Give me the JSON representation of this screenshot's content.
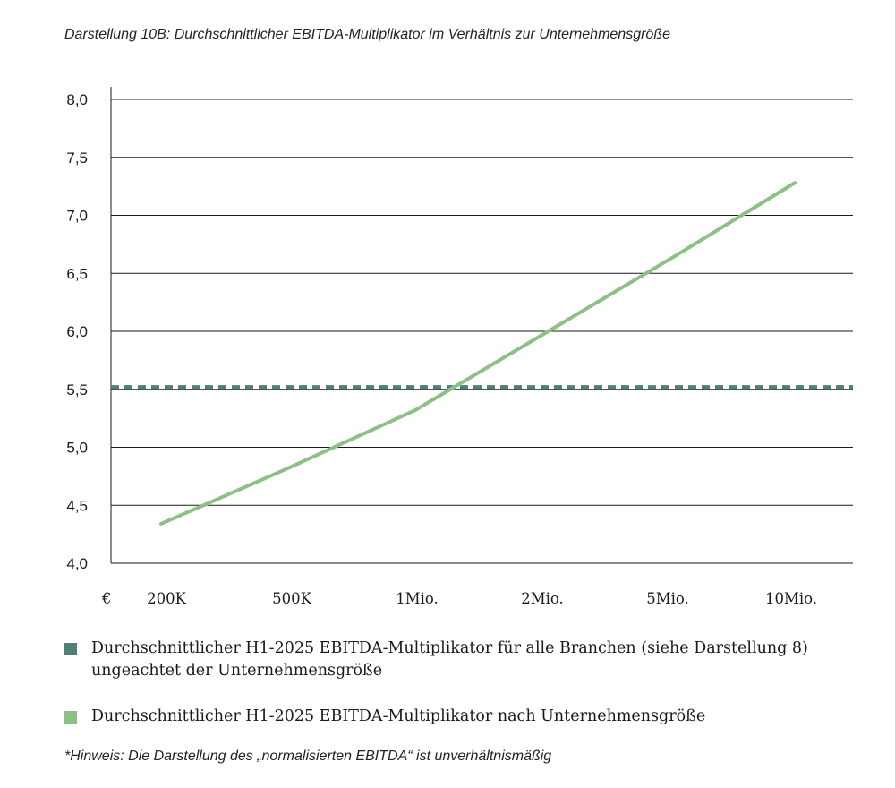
{
  "chart_data": {
    "type": "line",
    "title": "Darstellung 10B: Durchschnittlicher EBITDA-Multiplikator im Verhältnis zur Unternehmensgröße",
    "currency_label": "€",
    "categories": [
      "200K",
      "500K",
      "1Mio.",
      "2Mio.",
      "5Mio.",
      "10Mio."
    ],
    "y_ticks": [
      "8,0",
      "7,5",
      "7,0",
      "6,5",
      "6,0",
      "5,5",
      "5,0",
      "4,5",
      "4,0"
    ],
    "ylim": [
      4.0,
      8.0
    ],
    "grid": true,
    "series": [
      {
        "name": "Durchschnittlicher H1-2025 EBITDA-Multiplikator für alle Branchen (siehe Darstellung 8) ungeachtet der Unternehmensgröße",
        "style": "dashed",
        "color": "#4e7f79",
        "values": [
          5.52,
          5.52,
          5.52,
          5.52,
          5.52,
          5.52
        ]
      },
      {
        "name": "Durchschnittlicher H1-2025 EBITDA-Multiplikator nach Unternehmensgröße",
        "style": "solid",
        "color": "#8cc084",
        "values": [
          4.34,
          4.82,
          5.32,
          5.97,
          6.62,
          7.28
        ]
      }
    ],
    "legend_position": "bottom",
    "footnote": "*Hinweis: Die Darstellung des „normalisierten EBITDA“ ist unverhältnismäßig"
  }
}
